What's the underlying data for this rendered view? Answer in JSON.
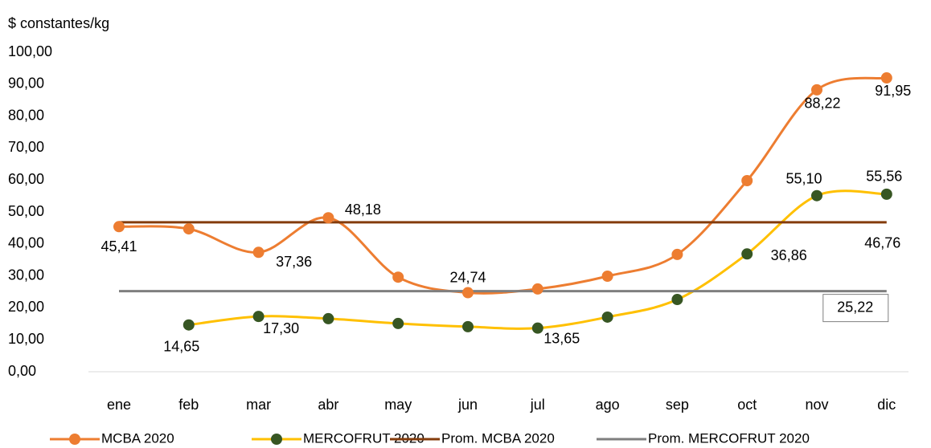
{
  "chart_data": {
    "type": "line",
    "y_axis_label": "$ constantes/kg",
    "categories": [
      "ene",
      "feb",
      "mar",
      "abr",
      "may",
      "jun",
      "jul",
      "ago",
      "sep",
      "oct",
      "nov",
      "dic"
    ],
    "ylim": [
      0,
      100
    ],
    "yticks": [
      {
        "value": 0,
        "label": "0,00"
      },
      {
        "value": 10,
        "label": "10,00"
      },
      {
        "value": 20,
        "label": "20,00"
      },
      {
        "value": 30,
        "label": "30,00"
      },
      {
        "value": 40,
        "label": "40,00"
      },
      {
        "value": 50,
        "label": "50,00"
      },
      {
        "value": 60,
        "label": "60,00"
      },
      {
        "value": 70,
        "label": "70,00"
      },
      {
        "value": 80,
        "label": "80,00"
      },
      {
        "value": 90,
        "label": "90,00"
      },
      {
        "value": 100,
        "label": "100,00"
      }
    ],
    "series": [
      {
        "name": "MCBA 2020",
        "color": "#ED7D31",
        "marker_color": "#ED7D31",
        "smooth": true,
        "values": [
          45.41,
          44.7,
          37.36,
          48.18,
          29.6,
          24.74,
          25.9,
          29.9,
          36.7,
          59.8,
          88.22,
          91.95
        ],
        "value_labels": [
          "45,41",
          null,
          "37,36",
          "48,18",
          null,
          "24,74",
          null,
          null,
          null,
          null,
          "88,22",
          "91,95"
        ]
      },
      {
        "name": "MERCOFRUT 2020",
        "color": "#FFC000",
        "marker_color": "#375623",
        "smooth": true,
        "values": [
          null,
          14.65,
          17.3,
          16.6,
          15.1,
          14.1,
          13.65,
          17.1,
          22.6,
          36.86,
          55.1,
          55.56
        ],
        "value_labels": [
          null,
          "14,65",
          "17,30",
          null,
          null,
          null,
          "13,65",
          null,
          null,
          "36,86",
          "55,10",
          "55,56"
        ]
      },
      {
        "name": "Prom. MCBA 2020",
        "color": "#843C0C",
        "smooth": false,
        "values": [
          46.76,
          46.76,
          46.76,
          46.76,
          46.76,
          46.76,
          46.76,
          46.76,
          46.76,
          46.76,
          46.76,
          46.76
        ],
        "value_labels": [
          null,
          null,
          null,
          null,
          null,
          null,
          null,
          null,
          null,
          null,
          null,
          "46,76"
        ]
      },
      {
        "name": "Prom. MERCOFRUT 2020",
        "color": "#7F7F7F",
        "smooth": false,
        "values": [
          25.22,
          25.22,
          25.22,
          25.22,
          25.22,
          25.22,
          25.22,
          25.22,
          25.22,
          25.22,
          25.22,
          25.22
        ],
        "value_labels": [
          null,
          null,
          null,
          null,
          null,
          null,
          null,
          null,
          null,
          null,
          null,
          "25,22"
        ]
      }
    ]
  }
}
